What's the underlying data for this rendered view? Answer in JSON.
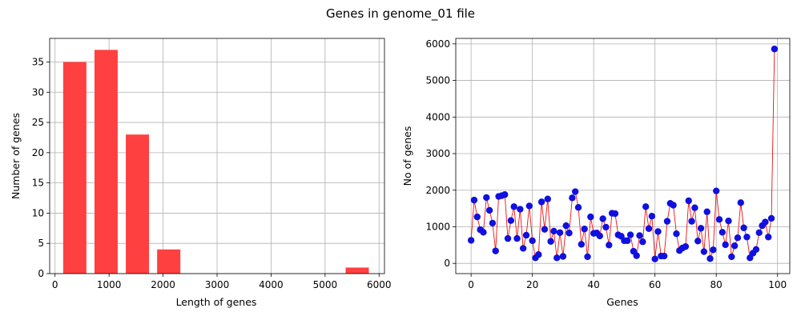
{
  "suptitle": "Genes in genome_01 file",
  "colors": {
    "hist_bar": "#ff4040",
    "scatter_point": "#1010e0",
    "line": "#ee1111",
    "grid": "#b0b0b0"
  },
  "chart_data": [
    {
      "type": "bar",
      "xlabel": "Length of genes",
      "ylabel": "Number of genes",
      "xlim": [
        -100,
        6100
      ],
      "ylim": [
        0,
        38.9
      ],
      "xticks": [
        0,
        1000,
        2000,
        3000,
        4000,
        5000,
        6000
      ],
      "yticks": [
        0,
        5,
        10,
        15,
        20,
        25,
        30,
        35
      ],
      "grid": true,
      "bars": [
        {
          "x0": 150,
          "x1": 580,
          "value": 35
        },
        {
          "x0": 730,
          "x1": 1160,
          "value": 37
        },
        {
          "x0": 1310,
          "x1": 1740,
          "value": 23
        },
        {
          "x0": 1890,
          "x1": 2320,
          "value": 4
        },
        {
          "x0": 5380,
          "x1": 5810,
          "value": 1
        }
      ]
    },
    {
      "type": "line",
      "xlabel": "Genes",
      "ylabel": "No of genes",
      "xlim": [
        -5,
        104
      ],
      "ylim": [
        -280,
        6150
      ],
      "xticks": [
        0,
        20,
        40,
        60,
        80,
        100
      ],
      "yticks": [
        0,
        1000,
        2000,
        3000,
        4000,
        5000,
        6000
      ],
      "grid": true,
      "markers": true,
      "x": [
        0,
        1,
        2,
        3,
        4,
        5,
        6,
        7,
        8,
        9,
        10,
        11,
        12,
        13,
        14,
        15,
        16,
        17,
        18,
        19,
        20,
        21,
        22,
        23,
        24,
        25,
        26,
        27,
        28,
        29,
        30,
        31,
        32,
        33,
        34,
        35,
        36,
        37,
        38,
        39,
        40,
        41,
        42,
        43,
        44,
        45,
        46,
        47,
        48,
        49,
        50,
        51,
        52,
        53,
        54,
        55,
        56,
        57,
        58,
        59,
        60,
        61,
        62,
        63,
        64,
        65,
        66,
        67,
        68,
        69,
        70,
        71,
        72,
        73,
        74,
        75,
        76,
        77,
        78,
        79,
        80,
        81,
        82,
        83,
        84,
        85,
        86,
        87,
        88,
        89,
        90,
        91,
        92,
        93,
        94,
        95,
        96,
        97,
        98,
        99
      ],
      "y": [
        630,
        1730,
        1270,
        920,
        850,
        1800,
        1450,
        1100,
        340,
        1830,
        1850,
        1880,
        680,
        1170,
        1550,
        680,
        1480,
        410,
        770,
        1570,
        620,
        150,
        240,
        1680,
        930,
        1760,
        600,
        880,
        150,
        840,
        190,
        1030,
        830,
        1790,
        1960,
        1530,
        520,
        940,
        180,
        1270,
        820,
        830,
        750,
        1220,
        990,
        500,
        1370,
        1360,
        780,
        740,
        620,
        620,
        780,
        330,
        210,
        760,
        590,
        1550,
        950,
        1290,
        120,
        870,
        200,
        200,
        1150,
        1640,
        1590,
        810,
        350,
        420,
        460,
        1710,
        1150,
        1520,
        610,
        960,
        320,
        1410,
        130,
        370,
        1980,
        1200,
        850,
        510,
        1160,
        180,
        480,
        700,
        1660,
        970,
        720,
        150,
        280,
        380,
        840,
        1030,
        1130,
        720,
        1230,
        5860
      ]
    }
  ]
}
